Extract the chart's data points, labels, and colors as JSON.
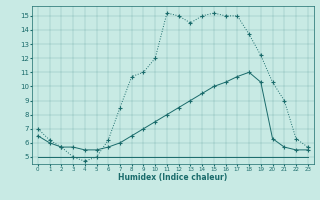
{
  "xlabel": "Humidex (Indice chaleur)",
  "xlim": [
    -0.5,
    23.5
  ],
  "ylim": [
    4.5,
    15.7
  ],
  "yticks": [
    5,
    6,
    7,
    8,
    9,
    10,
    11,
    12,
    13,
    14,
    15
  ],
  "xticks": [
    0,
    1,
    2,
    3,
    4,
    5,
    6,
    7,
    8,
    9,
    10,
    11,
    12,
    13,
    14,
    15,
    16,
    17,
    18,
    19,
    20,
    21,
    22,
    23
  ],
  "bg_color": "#c8eae4",
  "line_color": "#1a6b6b",
  "curve1_x": [
    0,
    1,
    2,
    3,
    4,
    5,
    6,
    7,
    8,
    9,
    10,
    11,
    12,
    13,
    14,
    15,
    16,
    17,
    18,
    19,
    20,
    21,
    22,
    23
  ],
  "curve1_y": [
    7.0,
    6.2,
    5.7,
    5.0,
    4.7,
    5.0,
    6.2,
    8.5,
    10.7,
    11.0,
    12.0,
    15.2,
    15.0,
    14.5,
    15.0,
    15.2,
    15.0,
    15.0,
    13.7,
    12.2,
    10.3,
    9.0,
    6.3,
    5.7
  ],
  "curve2_x": [
    0,
    1,
    2,
    3,
    4,
    5,
    6,
    7,
    8,
    9,
    10,
    11,
    12,
    13,
    14,
    15,
    16,
    17,
    18,
    19,
    20,
    21,
    22,
    23
  ],
  "curve2_y": [
    6.5,
    6.0,
    5.7,
    5.7,
    5.5,
    5.5,
    5.7,
    6.0,
    6.5,
    7.0,
    7.5,
    8.0,
    8.5,
    9.0,
    9.5,
    10.0,
    10.3,
    10.7,
    11.0,
    10.3,
    6.3,
    5.7,
    5.5,
    5.5
  ],
  "curve3_x": [
    0,
    1,
    2,
    3,
    4,
    5,
    6,
    7,
    8,
    9,
    10,
    11,
    12,
    13,
    14,
    15,
    16,
    17,
    18,
    19,
    20,
    21,
    22,
    23
  ],
  "curve3_y": [
    5.0,
    5.0,
    5.0,
    5.0,
    5.0,
    5.0,
    5.0,
    5.0,
    5.0,
    5.0,
    5.0,
    5.0,
    5.0,
    5.0,
    5.0,
    5.0,
    5.0,
    5.0,
    5.0,
    5.0,
    5.0,
    5.0,
    5.0,
    5.0
  ]
}
